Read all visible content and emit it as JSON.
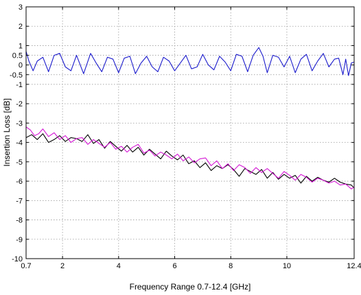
{
  "chart_data": {
    "type": "line",
    "xlabel": "Frequency Range 0.7-12.4 [GHz]",
    "ylabel": "Insertion Loss [dB]",
    "xlim": [
      0.7,
      12.4
    ],
    "ylim": [
      -10,
      3
    ],
    "grid": true,
    "xticks": [
      0.7,
      2,
      4,
      6,
      8,
      10,
      12.4
    ],
    "xtick_labels": [
      "0.7",
      "2",
      "4",
      "6",
      "8",
      "10",
      "12.4"
    ],
    "yticks": [
      3,
      2,
      1,
      0.5,
      0,
      -0.5,
      -1,
      -2,
      -3,
      -4,
      -5,
      -6,
      -7,
      -8,
      -9,
      -10
    ],
    "ytick_labels": [
      "3",
      "2",
      "1",
      "0.5",
      "0",
      "-0.5",
      "-1",
      "-2",
      "-3",
      "-4",
      "-5",
      "-6",
      "-7",
      "-8",
      "-9",
      "-10"
    ],
    "series": [
      {
        "color": "#1a1acc",
        "x": [
          0.7,
          0.8,
          0.95,
          1.1,
          1.3,
          1.5,
          1.7,
          1.9,
          2.1,
          2.3,
          2.5,
          2.75,
          3.0,
          3.2,
          3.4,
          3.6,
          3.8,
          4.0,
          4.2,
          4.4,
          4.6,
          4.8,
          5.0,
          5.2,
          5.4,
          5.6,
          5.8,
          6.0,
          6.2,
          6.4,
          6.6,
          6.8,
          7.0,
          7.2,
          7.4,
          7.6,
          7.8,
          8.0,
          8.2,
          8.4,
          8.6,
          8.8,
          9.0,
          9.15,
          9.3,
          9.5,
          9.7,
          9.9,
          10.1,
          10.3,
          10.5,
          10.7,
          10.9,
          11.1,
          11.3,
          11.5,
          11.7,
          11.85,
          12.0,
          12.1,
          12.2,
          12.3,
          12.4
        ],
        "y": [
          0.7,
          0.2,
          -0.3,
          0.2,
          0.4,
          -0.35,
          0.5,
          0.6,
          -0.1,
          -0.3,
          0.5,
          -0.45,
          0.6,
          0.1,
          -0.35,
          0.4,
          0.3,
          -0.4,
          0.35,
          0.45,
          -0.45,
          0.1,
          0.45,
          -0.1,
          -0.35,
          0.4,
          0.2,
          -0.3,
          0.1,
          0.5,
          -0.2,
          -0.1,
          0.55,
          0.0,
          -0.25,
          0.45,
          0.15,
          -0.3,
          0.55,
          0.45,
          -0.35,
          0.5,
          0.9,
          0.45,
          -0.4,
          0.5,
          0.4,
          -0.1,
          0.45,
          -0.4,
          0.3,
          0.55,
          -0.3,
          0.2,
          0.6,
          -0.1,
          0.3,
          0.35,
          -0.5,
          0.3,
          -0.55,
          0.1,
          0.15
        ]
      },
      {
        "color": "#000000",
        "x": [
          0.7,
          0.9,
          1.1,
          1.3,
          1.5,
          1.7,
          1.9,
          2.1,
          2.3,
          2.5,
          2.7,
          2.9,
          3.1,
          3.3,
          3.5,
          3.7,
          3.9,
          4.1,
          4.3,
          4.5,
          4.7,
          4.9,
          5.1,
          5.3,
          5.5,
          5.7,
          5.9,
          6.1,
          6.3,
          6.5,
          6.7,
          6.9,
          7.1,
          7.3,
          7.5,
          7.7,
          7.9,
          8.1,
          8.3,
          8.5,
          8.7,
          8.9,
          9.1,
          9.3,
          9.5,
          9.7,
          9.9,
          10.1,
          10.3,
          10.5,
          10.7,
          10.9,
          11.1,
          11.3,
          11.5,
          11.7,
          11.9,
          12.1,
          12.3,
          12.4
        ],
        "y": [
          -3.75,
          -3.6,
          -3.85,
          -3.55,
          -4.0,
          -3.85,
          -3.65,
          -3.95,
          -3.75,
          -3.8,
          -3.95,
          -3.6,
          -4.05,
          -3.85,
          -4.3,
          -3.95,
          -4.2,
          -4.45,
          -4.15,
          -4.5,
          -4.25,
          -4.65,
          -4.35,
          -4.6,
          -4.85,
          -4.45,
          -4.7,
          -4.9,
          -4.65,
          -5.1,
          -4.95,
          -5.3,
          -5.05,
          -5.45,
          -5.2,
          -5.35,
          -5.15,
          -5.4,
          -5.75,
          -5.35,
          -5.5,
          -5.65,
          -5.4,
          -5.85,
          -5.55,
          -5.9,
          -5.65,
          -5.85,
          -5.7,
          -6.1,
          -5.75,
          -6.0,
          -5.8,
          -5.95,
          -6.05,
          -5.85,
          -6.05,
          -6.15,
          -6.2,
          -6.35
        ]
      },
      {
        "color": "#d417d4",
        "x": [
          0.7,
          0.85,
          1.0,
          1.15,
          1.3,
          1.5,
          1.7,
          1.9,
          2.1,
          2.3,
          2.5,
          2.7,
          2.9,
          3.1,
          3.3,
          3.5,
          3.7,
          3.9,
          4.1,
          4.3,
          4.5,
          4.7,
          4.9,
          5.1,
          5.3,
          5.5,
          5.7,
          5.9,
          6.1,
          6.3,
          6.5,
          6.7,
          6.9,
          7.1,
          7.3,
          7.5,
          7.7,
          7.9,
          8.1,
          8.3,
          8.5,
          8.7,
          8.9,
          9.1,
          9.3,
          9.5,
          9.7,
          9.9,
          10.1,
          10.3,
          10.5,
          10.7,
          10.9,
          11.1,
          11.3,
          11.5,
          11.7,
          11.9,
          12.1,
          12.3,
          12.4
        ],
        "y": [
          -3.2,
          -3.35,
          -3.65,
          -3.55,
          -3.3,
          -3.7,
          -3.5,
          -3.85,
          -3.65,
          -4.0,
          -3.8,
          -3.75,
          -4.1,
          -3.85,
          -4.05,
          -4.25,
          -4.0,
          -4.35,
          -4.2,
          -4.5,
          -4.25,
          -4.1,
          -4.55,
          -4.4,
          -4.7,
          -4.5,
          -4.65,
          -4.85,
          -4.6,
          -4.95,
          -4.75,
          -5.05,
          -4.85,
          -4.8,
          -5.2,
          -4.95,
          -5.35,
          -5.1,
          -5.45,
          -5.15,
          -5.3,
          -5.6,
          -5.3,
          -5.55,
          -5.35,
          -5.6,
          -5.85,
          -5.5,
          -5.7,
          -5.95,
          -5.65,
          -5.8,
          -6.05,
          -5.85,
          -5.95,
          -6.1,
          -6.0,
          -6.2,
          -6.15,
          -6.4,
          -6.3
        ]
      }
    ]
  }
}
